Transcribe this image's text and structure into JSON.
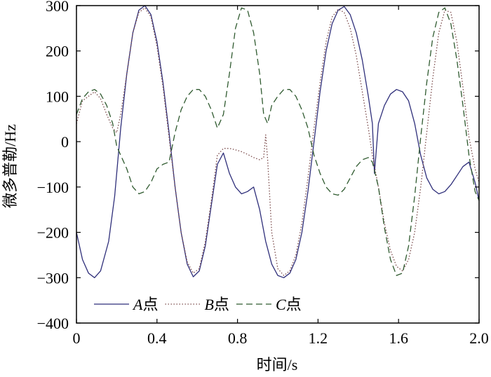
{
  "chart_data": {
    "type": "line",
    "xlabel": "时间/s",
    "ylabel": "微多普勒/Hz",
    "xlim": [
      0,
      2.0
    ],
    "ylim": [
      -400,
      300
    ],
    "x_ticks": [
      "0",
      "0.4",
      "0.8",
      "1.2",
      "1.6",
      "2.0"
    ],
    "y_ticks": [
      "−400",
      "−300",
      "−200",
      "−100",
      "0",
      "100",
      "200",
      "300"
    ],
    "grid": false,
    "legend_position": "bottom-left",
    "series": [
      {
        "name": "A点",
        "color": "#2f2f7a",
        "dash": "solid",
        "points": [
          [
            0,
            -200
          ],
          [
            0.03,
            -260
          ],
          [
            0.06,
            -290
          ],
          [
            0.09,
            -300
          ],
          [
            0.12,
            -285
          ],
          [
            0.16,
            -220
          ],
          [
            0.19,
            -120
          ],
          [
            0.22,
            30
          ],
          [
            0.25,
            150
          ],
          [
            0.28,
            240
          ],
          [
            0.31,
            290
          ],
          [
            0.34,
            300
          ],
          [
            0.37,
            280
          ],
          [
            0.4,
            220
          ],
          [
            0.43,
            130
          ],
          [
            0.46,
            20
          ],
          [
            0.49,
            -100
          ],
          [
            0.52,
            -200
          ],
          [
            0.55,
            -270
          ],
          [
            0.58,
            -298
          ],
          [
            0.61,
            -285
          ],
          [
            0.64,
            -230
          ],
          [
            0.67,
            -140
          ],
          [
            0.7,
            -50
          ],
          [
            0.73,
            -25
          ],
          [
            0.76,
            -70
          ],
          [
            0.79,
            -100
          ],
          [
            0.82,
            -115
          ],
          [
            0.85,
            -110
          ],
          [
            0.88,
            -100
          ],
          [
            0.91,
            -150
          ],
          [
            0.94,
            -220
          ],
          [
            0.97,
            -270
          ],
          [
            1.0,
            -295
          ],
          [
            1.03,
            -300
          ],
          [
            1.06,
            -290
          ],
          [
            1.09,
            -260
          ],
          [
            1.12,
            -200
          ],
          [
            1.15,
            -110
          ],
          [
            1.18,
            0
          ],
          [
            1.21,
            110
          ],
          [
            1.24,
            200
          ],
          [
            1.27,
            260
          ],
          [
            1.3,
            290
          ],
          [
            1.33,
            298
          ],
          [
            1.36,
            280
          ],
          [
            1.39,
            240
          ],
          [
            1.42,
            180
          ],
          [
            1.45,
            100
          ],
          [
            1.47,
            40
          ],
          [
            1.48,
            -70
          ],
          [
            1.5,
            40
          ],
          [
            1.53,
            80
          ],
          [
            1.56,
            105
          ],
          [
            1.59,
            115
          ],
          [
            1.62,
            110
          ],
          [
            1.65,
            90
          ],
          [
            1.68,
            40
          ],
          [
            1.71,
            -30
          ],
          [
            1.74,
            -80
          ],
          [
            1.77,
            -105
          ],
          [
            1.8,
            -115
          ],
          [
            1.83,
            -110
          ],
          [
            1.86,
            -95
          ],
          [
            1.89,
            -75
          ],
          [
            1.92,
            -55
          ],
          [
            1.95,
            -45
          ],
          [
            1.98,
            -90
          ],
          [
            2.0,
            -130
          ]
        ]
      },
      {
        "name": "B点",
        "color": "#7a4a4a",
        "dash": "dotted",
        "points": [
          [
            0,
            40
          ],
          [
            0.03,
            90
          ],
          [
            0.06,
            100
          ],
          [
            0.09,
            110
          ],
          [
            0.12,
            95
          ],
          [
            0.15,
            60
          ],
          [
            0.18,
            30
          ],
          [
            0.2,
            20
          ],
          [
            0.22,
            60
          ],
          [
            0.25,
            150
          ],
          [
            0.28,
            240
          ],
          [
            0.31,
            285
          ],
          [
            0.34,
            295
          ],
          [
            0.37,
            275
          ],
          [
            0.4,
            210
          ],
          [
            0.43,
            120
          ],
          [
            0.46,
            10
          ],
          [
            0.49,
            -100
          ],
          [
            0.52,
            -200
          ],
          [
            0.55,
            -265
          ],
          [
            0.58,
            -290
          ],
          [
            0.61,
            -280
          ],
          [
            0.64,
            -220
          ],
          [
            0.67,
            -130
          ],
          [
            0.7,
            -30
          ],
          [
            0.73,
            -15
          ],
          [
            0.76,
            -15
          ],
          [
            0.79,
            -18
          ],
          [
            0.82,
            -22
          ],
          [
            0.85,
            -28
          ],
          [
            0.88,
            -35
          ],
          [
            0.91,
            -40
          ],
          [
            0.93,
            -35
          ],
          [
            0.94,
            15
          ],
          [
            0.95,
            -40
          ],
          [
            0.97,
            -200
          ],
          [
            1.0,
            -280
          ],
          [
            1.03,
            -295
          ],
          [
            1.06,
            -285
          ],
          [
            1.09,
            -250
          ],
          [
            1.12,
            -180
          ],
          [
            1.15,
            -80
          ],
          [
            1.18,
            30
          ],
          [
            1.21,
            130
          ],
          [
            1.24,
            220
          ],
          [
            1.27,
            275
          ],
          [
            1.3,
            292
          ],
          [
            1.33,
            285
          ],
          [
            1.36,
            250
          ],
          [
            1.39,
            190
          ],
          [
            1.42,
            110
          ],
          [
            1.45,
            30
          ],
          [
            1.47,
            -30
          ],
          [
            1.5,
            -100
          ],
          [
            1.53,
            -180
          ],
          [
            1.56,
            -240
          ],
          [
            1.59,
            -275
          ],
          [
            1.62,
            -285
          ],
          [
            1.65,
            -260
          ],
          [
            1.68,
            -200
          ],
          [
            1.71,
            -100
          ],
          [
            1.74,
            20
          ],
          [
            1.77,
            140
          ],
          [
            1.8,
            240
          ],
          [
            1.83,
            290
          ],
          [
            1.86,
            285
          ],
          [
            1.89,
            220
          ],
          [
            1.92,
            120
          ],
          [
            1.95,
            10
          ],
          [
            1.98,
            -60
          ],
          [
            2.0,
            -90
          ]
        ]
      },
      {
        "name": "C点",
        "color": "#2f5a2f",
        "dash": "dashed",
        "points": [
          [
            0,
            60
          ],
          [
            0.03,
            95
          ],
          [
            0.06,
            110
          ],
          [
            0.09,
            115
          ],
          [
            0.12,
            105
          ],
          [
            0.15,
            80
          ],
          [
            0.18,
            40
          ],
          [
            0.2,
            -10
          ],
          [
            0.22,
            -30
          ],
          [
            0.25,
            -60
          ],
          [
            0.28,
            -100
          ],
          [
            0.31,
            -115
          ],
          [
            0.34,
            -110
          ],
          [
            0.37,
            -90
          ],
          [
            0.4,
            -60
          ],
          [
            0.43,
            -50
          ],
          [
            0.46,
            -45
          ],
          [
            0.49,
            20
          ],
          [
            0.52,
            70
          ],
          [
            0.55,
            100
          ],
          [
            0.58,
            115
          ],
          [
            0.61,
            115
          ],
          [
            0.64,
            100
          ],
          [
            0.67,
            70
          ],
          [
            0.7,
            30
          ],
          [
            0.73,
            60
          ],
          [
            0.76,
            150
          ],
          [
            0.79,
            250
          ],
          [
            0.82,
            295
          ],
          [
            0.85,
            290
          ],
          [
            0.88,
            240
          ],
          [
            0.91,
            150
          ],
          [
            0.93,
            60
          ],
          [
            0.95,
            40
          ],
          [
            0.97,
            80
          ],
          [
            1.0,
            100
          ],
          [
            1.03,
            115
          ],
          [
            1.06,
            115
          ],
          [
            1.09,
            100
          ],
          [
            1.12,
            70
          ],
          [
            1.15,
            30
          ],
          [
            1.18,
            -30
          ],
          [
            1.21,
            -70
          ],
          [
            1.24,
            -100
          ],
          [
            1.27,
            -115
          ],
          [
            1.3,
            -118
          ],
          [
            1.33,
            -105
          ],
          [
            1.36,
            -80
          ],
          [
            1.39,
            -55
          ],
          [
            1.42,
            -40
          ],
          [
            1.45,
            -35
          ],
          [
            1.47,
            -45
          ],
          [
            1.5,
            -100
          ],
          [
            1.53,
            -190
          ],
          [
            1.56,
            -260
          ],
          [
            1.59,
            -295
          ],
          [
            1.62,
            -290
          ],
          [
            1.65,
            -230
          ],
          [
            1.68,
            -120
          ],
          [
            1.71,
            10
          ],
          [
            1.74,
            130
          ],
          [
            1.77,
            230
          ],
          [
            1.8,
            285
          ],
          [
            1.83,
            295
          ],
          [
            1.86,
            260
          ],
          [
            1.89,
            180
          ],
          [
            1.92,
            80
          ],
          [
            1.95,
            -30
          ],
          [
            1.98,
            -110
          ],
          [
            2.0,
            -130
          ]
        ]
      }
    ]
  }
}
